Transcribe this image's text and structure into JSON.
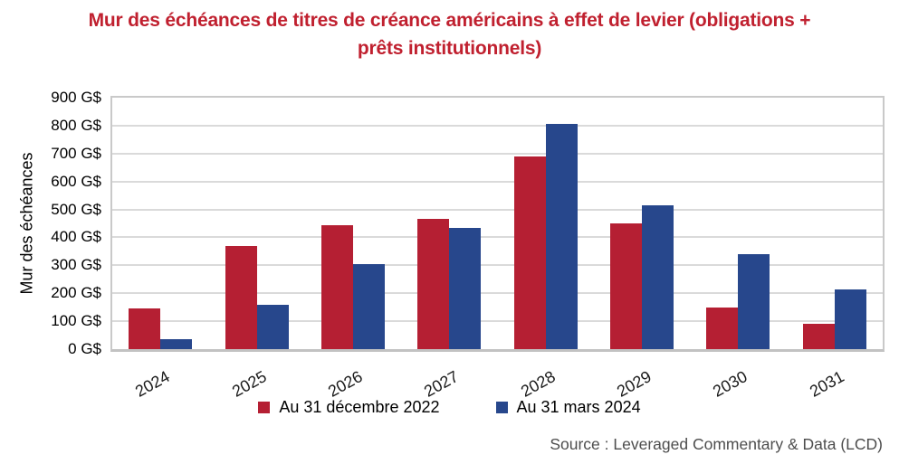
{
  "title_lines": [
    "Mur des échéances de titres de créance américains à effet de levier (obligations +",
    "prêts institutionnels)"
  ],
  "source": "Source : Leveraged Commentary & Data (LCD)",
  "colors": {
    "title_text": "#C0202F",
    "series1": "#B51F33",
    "series2": "#27478C",
    "gridline": "#DADADA",
    "plot_border": "#C9C9C9",
    "axis_line": "#C2C2C2",
    "source_text": "#4D4D4D"
  },
  "chart_data": {
    "type": "bar",
    "title": "Mur des échéances de titres de créance américains à effet de levier (obligations + prêts institutionnels)",
    "categories": [
      "2024",
      "2025",
      "2026",
      "2027",
      "2028",
      "2029",
      "2030",
      "2031"
    ],
    "series": [
      {
        "name": "Au 31 décembre 2022",
        "color": "#B51F33",
        "values": [
          145,
          370,
          445,
          465,
          690,
          450,
          150,
          90
        ]
      },
      {
        "name": "Au 31 mars 2024",
        "color": "#27478C",
        "values": [
          35,
          160,
          305,
          435,
          805,
          515,
          340,
          215
        ]
      }
    ],
    "xlabel": "",
    "ylabel": "Mur des échéances",
    "unit": "G$",
    "ylim": [
      0,
      900
    ],
    "ytick_step": 100,
    "ytick_labels": [
      "0 G$",
      "100 G$",
      "200 G$",
      "300 G$",
      "400 G$",
      "500 G$",
      "600 G$",
      "700 G$",
      "800 G$",
      "900 G$"
    ],
    "grid": true,
    "legend_position": "bottom"
  }
}
